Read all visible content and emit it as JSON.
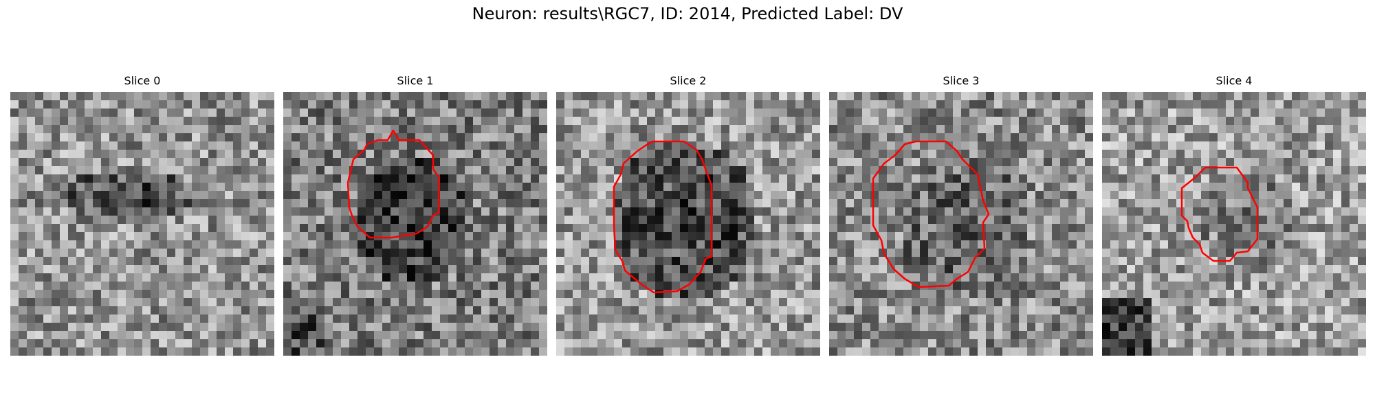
{
  "figure": {
    "title": "Neuron: results\\RGC7, ID: 2014, Predicted Label: DV"
  },
  "panels": [
    {
      "title": "Slice 0",
      "has_outline": false
    },
    {
      "title": "Slice 1",
      "has_outline": true
    },
    {
      "title": "Slice 2",
      "has_outline": true
    },
    {
      "title": "Slice 3",
      "has_outline": true
    },
    {
      "title": "Slice 4",
      "has_outline": true
    }
  ],
  "colors": {
    "outline": "#ff0000",
    "colormap": "gray"
  }
}
